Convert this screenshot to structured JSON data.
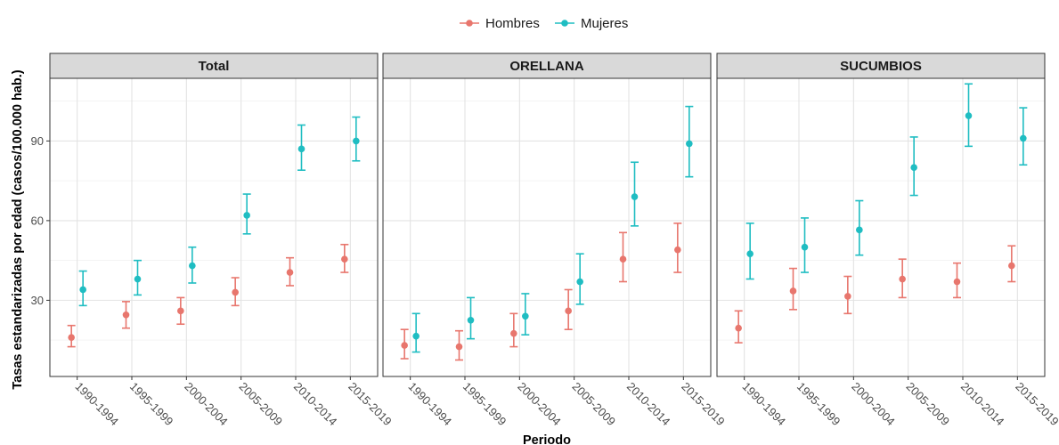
{
  "chart_data": {
    "type": "scatter",
    "xlabel": "Periodo",
    "ylabel": "Tasas estandarizadas por edad (casos/100.000 hab.)",
    "ylim": [
      1.3,
      113.6
    ],
    "yticks": [
      30,
      60,
      90
    ],
    "legend": {
      "placement": "top-center",
      "items": [
        {
          "name": "Hombres",
          "color": "#E8766D"
        },
        {
          "name": "Mujeres",
          "color": "#1FBDC2"
        }
      ]
    },
    "categories": [
      "1990-1994",
      "1995-1999",
      "2000-2004",
      "2005-2009",
      "2010-2014",
      "2015-2019"
    ],
    "grid": true,
    "panels": [
      {
        "title": "Total",
        "series": [
          {
            "name": "Hombres",
            "color": "#E8766D",
            "values": [
              16,
              24.5,
              26,
              33,
              40.5,
              45.5
            ],
            "lower": [
              12.5,
              19.5,
              21,
              28,
              35.5,
              40.5
            ],
            "upper": [
              20.5,
              29.5,
              31,
              38.5,
              46,
              51
            ]
          },
          {
            "name": "Mujeres",
            "color": "#1FBDC2",
            "values": [
              34,
              38,
              43,
              62,
              87,
              90
            ],
            "lower": [
              28,
              32,
              36.5,
              55,
              79,
              82.5
            ],
            "upper": [
              41,
              45,
              50,
              70,
              96,
              99
            ]
          }
        ]
      },
      {
        "title": "ORELLANA",
        "series": [
          {
            "name": "Hombres",
            "color": "#E8766D",
            "values": [
              13,
              12.5,
              17.5,
              26,
              45.5,
              49
            ],
            "lower": [
              8,
              7.5,
              12.5,
              19,
              37,
              40.5
            ],
            "upper": [
              19,
              18.5,
              25,
              34,
              55.5,
              59
            ]
          },
          {
            "name": "Mujeres",
            "color": "#1FBDC2",
            "values": [
              16.5,
              22.5,
              24,
              37,
              69,
              89
            ],
            "lower": [
              10.5,
              15.5,
              17,
              28.5,
              58,
              76.5
            ],
            "upper": [
              25,
              31,
              32.5,
              47.5,
              82,
              103
            ]
          }
        ]
      },
      {
        "title": "SUCUMBIOS",
        "series": [
          {
            "name": "Hombres",
            "color": "#E8766D",
            "values": [
              19.5,
              33.5,
              31.5,
              38,
              37,
              43
            ],
            "lower": [
              14,
              26.5,
              25,
              31,
              31,
              37
            ],
            "upper": [
              26,
              42,
              39,
              45.5,
              44,
              50.5
            ]
          },
          {
            "name": "Mujeres",
            "color": "#1FBDC2",
            "values": [
              47.5,
              50,
              56.5,
              80,
              99.5,
              91
            ],
            "lower": [
              38,
              40.5,
              47,
              69.5,
              88,
              81
            ],
            "upper": [
              59,
              61,
              67.5,
              91.5,
              111.5,
              102.5
            ]
          }
        ]
      }
    ]
  }
}
